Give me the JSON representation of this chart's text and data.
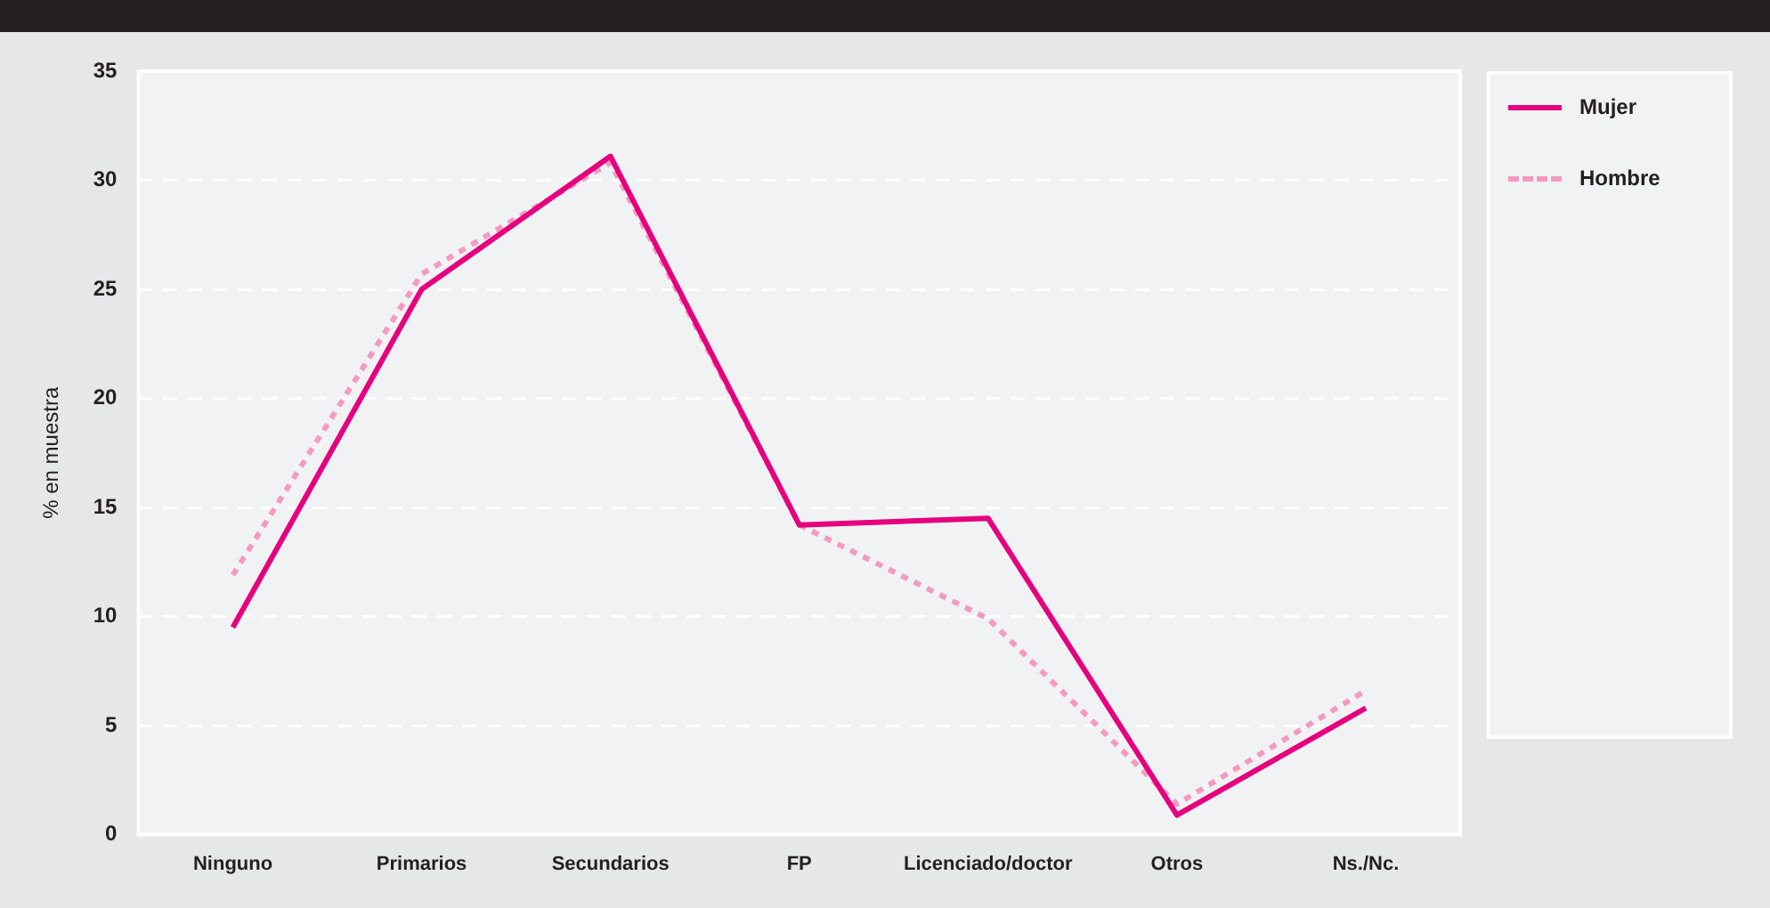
{
  "chart_data": {
    "type": "line",
    "ylabel": "% en muestra",
    "categories": [
      "Ninguno",
      "Primarios",
      "Secundarios",
      "FP",
      "Licenciado/doctor",
      "Otros",
      "Ns./Nc."
    ],
    "series": [
      {
        "name": "Mujer",
        "color": "#e6007e",
        "line_style": "solid",
        "values": [
          9.5,
          25,
          31.1,
          14.2,
          14.5,
          0.9,
          5.8
        ]
      },
      {
        "name": "Hombre",
        "color": "#f49ac1",
        "line_style": "dotted",
        "values": [
          11.9,
          25.7,
          30.8,
          14.2,
          9.9,
          1.4,
          6.6
        ]
      }
    ],
    "ylim": [
      0,
      35
    ],
    "yticks": [
      0,
      5,
      10,
      15,
      20,
      25,
      30,
      35
    ],
    "grid": "y",
    "legend": "right",
    "marker": "none"
  }
}
